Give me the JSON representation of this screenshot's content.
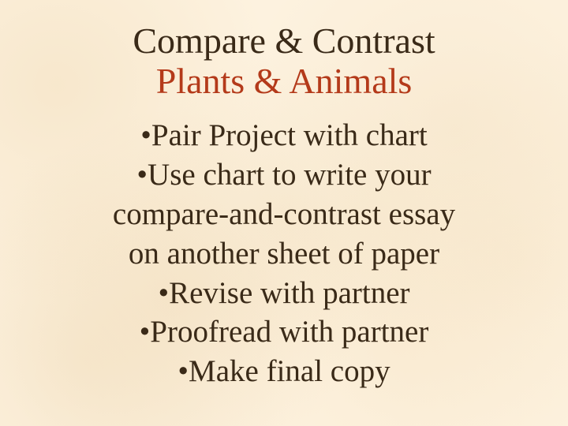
{
  "colors": {
    "background": "#fdf2df",
    "title1_color": "#3a2a18",
    "title2_color": "#b43a1a",
    "body_color": "#3a2a18"
  },
  "typography": {
    "font_family": "Times New Roman, serif",
    "title_fontsize_pt": 34,
    "body_fontsize_pt": 29
  },
  "title_line1": "Compare & Contrast",
  "title_line2": "Plants  &  Animals",
  "bullets": [
    "•Pair Project with chart",
    "•Use chart to write your",
    "compare-and-contrast essay",
    "on another sheet of paper",
    "•Revise with partner",
    "•Proofread with partner",
    "•Make final copy"
  ]
}
